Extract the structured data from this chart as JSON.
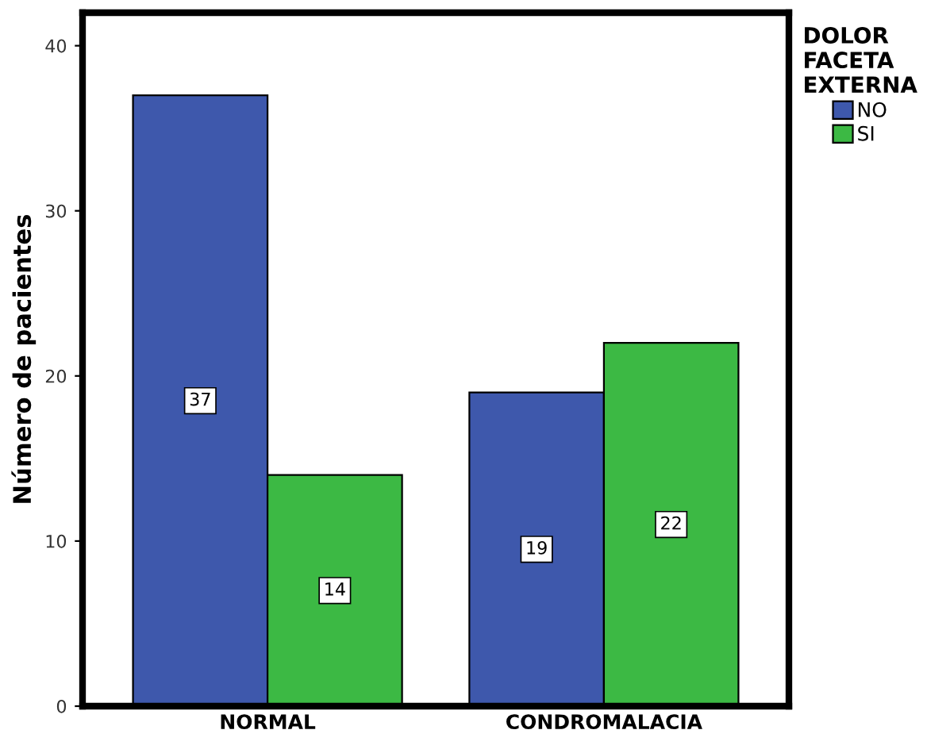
{
  "chart_data": {
    "type": "bar",
    "ylabel": "Número de pacientes",
    "legend_title": "DOLOR\nFACETA\nEXTERNA",
    "categories": [
      "NORMAL",
      "CONDROMALACIA"
    ],
    "series": [
      {
        "name": "NO",
        "color": "#3e58ac",
        "values": [
          37,
          19
        ]
      },
      {
        "name": "SI",
        "color": "#3cb944",
        "values": [
          14,
          22
        ]
      }
    ],
    "ylim": [
      0,
      42
    ],
    "yticks": [
      0,
      10,
      20,
      30,
      40
    ],
    "grid": false,
    "legend": "top right",
    "data_labels": true
  }
}
